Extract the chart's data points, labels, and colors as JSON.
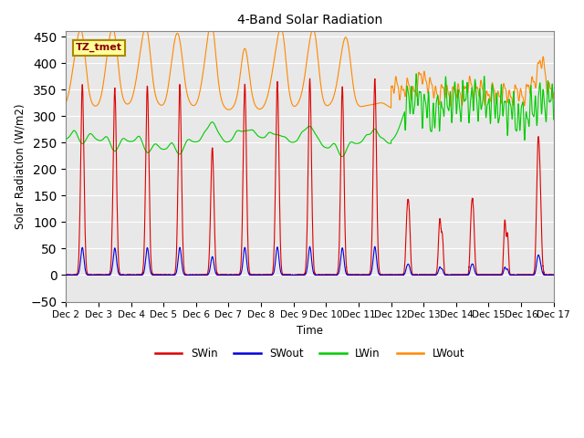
{
  "title": "4-Band Solar Radiation",
  "ylabel": "Solar Radiation (W/m2)",
  "xlabel": "Time",
  "annotation": "TZ_tmet",
  "ylim": [
    -50,
    460
  ],
  "xlim": [
    0,
    360
  ],
  "background_color": "#e8e8e8",
  "colors": {
    "SWin": "#dd0000",
    "SWout": "#0000dd",
    "LWin": "#00cc00",
    "LWout": "#ff8800"
  },
  "xtick_labels": [
    "Dec 2",
    "Dec 3",
    "Dec 4",
    "Dec 5",
    "Dec 6",
    "Dec 7",
    "Dec 8",
    "Dec 9",
    "Dec 10",
    "Dec 11",
    "Dec 12",
    "Dec 13",
    "Dec 14",
    "Dec 15",
    "Dec 16",
    "Dec 17"
  ],
  "xtick_positions": [
    0,
    24,
    48,
    72,
    96,
    120,
    144,
    168,
    192,
    216,
    240,
    264,
    288,
    312,
    336,
    360
  ]
}
